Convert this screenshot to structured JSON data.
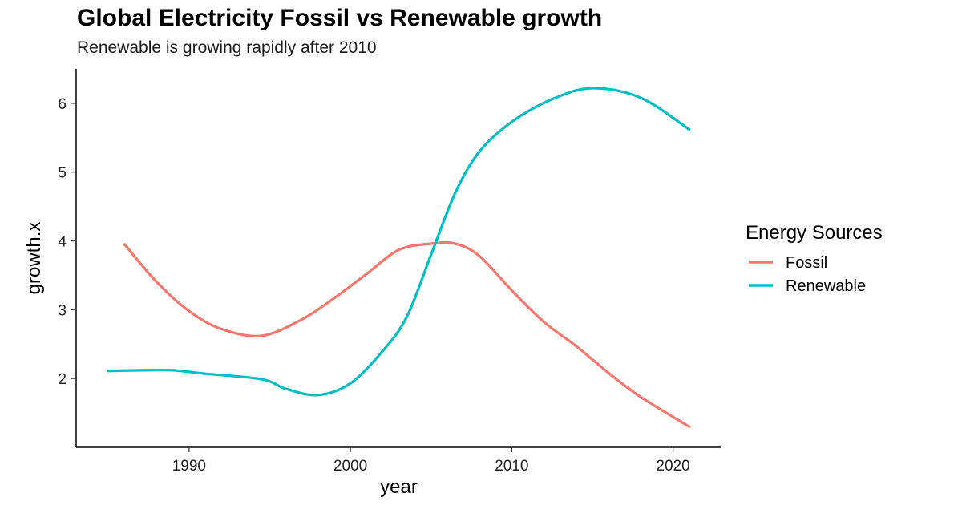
{
  "chart_data": {
    "type": "line",
    "title": "Global Electricity Fossil vs Renewable growth",
    "subtitle": "Renewable is growing rapidly after 2010",
    "xlabel": "year",
    "ylabel": "growth.x",
    "xlim": [
      1983,
      2023
    ],
    "ylim": [
      1.0,
      6.5
    ],
    "x_ticks": [
      1990,
      2000,
      2010,
      2020
    ],
    "y_ticks": [
      2,
      3,
      4,
      5,
      6
    ],
    "grid": false,
    "legend": {
      "title": "Energy Sources",
      "placement": "right"
    },
    "series": [
      {
        "name": "Fossil",
        "color": "#F8766D",
        "x": [
          1986,
          1988,
          1990,
          1992,
          1994.5,
          1997,
          1999,
          2001,
          2003,
          2005,
          2006.5,
          2008,
          2010,
          2012,
          2014,
          2016,
          2018,
          2021
        ],
        "y": [
          3.95,
          3.4,
          2.98,
          2.72,
          2.62,
          2.86,
          3.17,
          3.52,
          3.87,
          3.96,
          3.96,
          3.78,
          3.28,
          2.82,
          2.47,
          2.08,
          1.73,
          1.3
        ]
      },
      {
        "name": "Renewable",
        "color": "#00BFC4",
        "x": [
          1985,
          1987,
          1989,
          1991,
          1994.5,
          1996,
          1998,
          2000,
          2002,
          2003.5,
          2005,
          2006.5,
          2008,
          2010,
          2012.5,
          2015,
          2018,
          2021
        ],
        "y": [
          2.11,
          2.12,
          2.12,
          2.07,
          1.99,
          1.85,
          1.76,
          1.93,
          2.4,
          2.9,
          3.8,
          4.7,
          5.3,
          5.73,
          6.06,
          6.22,
          6.08,
          5.62
        ]
      }
    ]
  }
}
